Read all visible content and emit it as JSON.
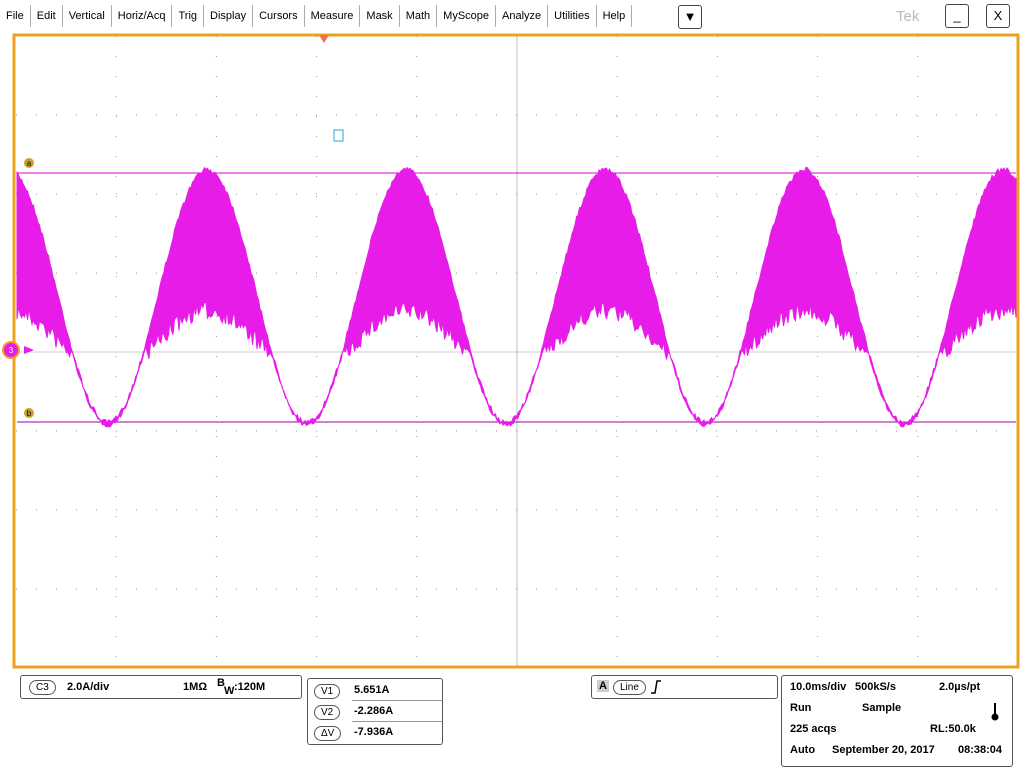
{
  "menu": {
    "items": [
      "File",
      "Edit",
      "Vertical",
      "Horiz/Acq",
      "Trig",
      "Display",
      "Cursors",
      "Measure",
      "Mask",
      "Math",
      "MyScope",
      "Analyze",
      "Utilities",
      "Help"
    ],
    "dropdown": "▼"
  },
  "window": {
    "brand": "Tek",
    "minimize": "_",
    "close": "X"
  },
  "markers": {
    "level_a": "a",
    "level_b": "b",
    "channel": "3"
  },
  "channel": {
    "badge": "C3",
    "scale": "2.0A/div",
    "impedance": "1MΩ",
    "bw_prefix": "B",
    "bw_sub": "W",
    "bw_value": ":120M"
  },
  "cursors": {
    "rows": [
      {
        "label": "V1",
        "value": "5.651A"
      },
      {
        "label": "V2",
        "value": "-2.286A"
      },
      {
        "label": "ΔV",
        "value": "-7.936A"
      }
    ]
  },
  "trigger": {
    "badge": "A",
    "source": "Line"
  },
  "acquisition": {
    "timebase": "10.0ms/div",
    "sample_rate": "500kS/s",
    "resolution": "2.0µs/pt",
    "state": "Run",
    "mode": "Sample",
    "count": "225 acqs",
    "record_length": "RL:50.0k",
    "trigger_mode": "Auto",
    "date": "September 20, 2017",
    "time": "08:38:04"
  }
}
